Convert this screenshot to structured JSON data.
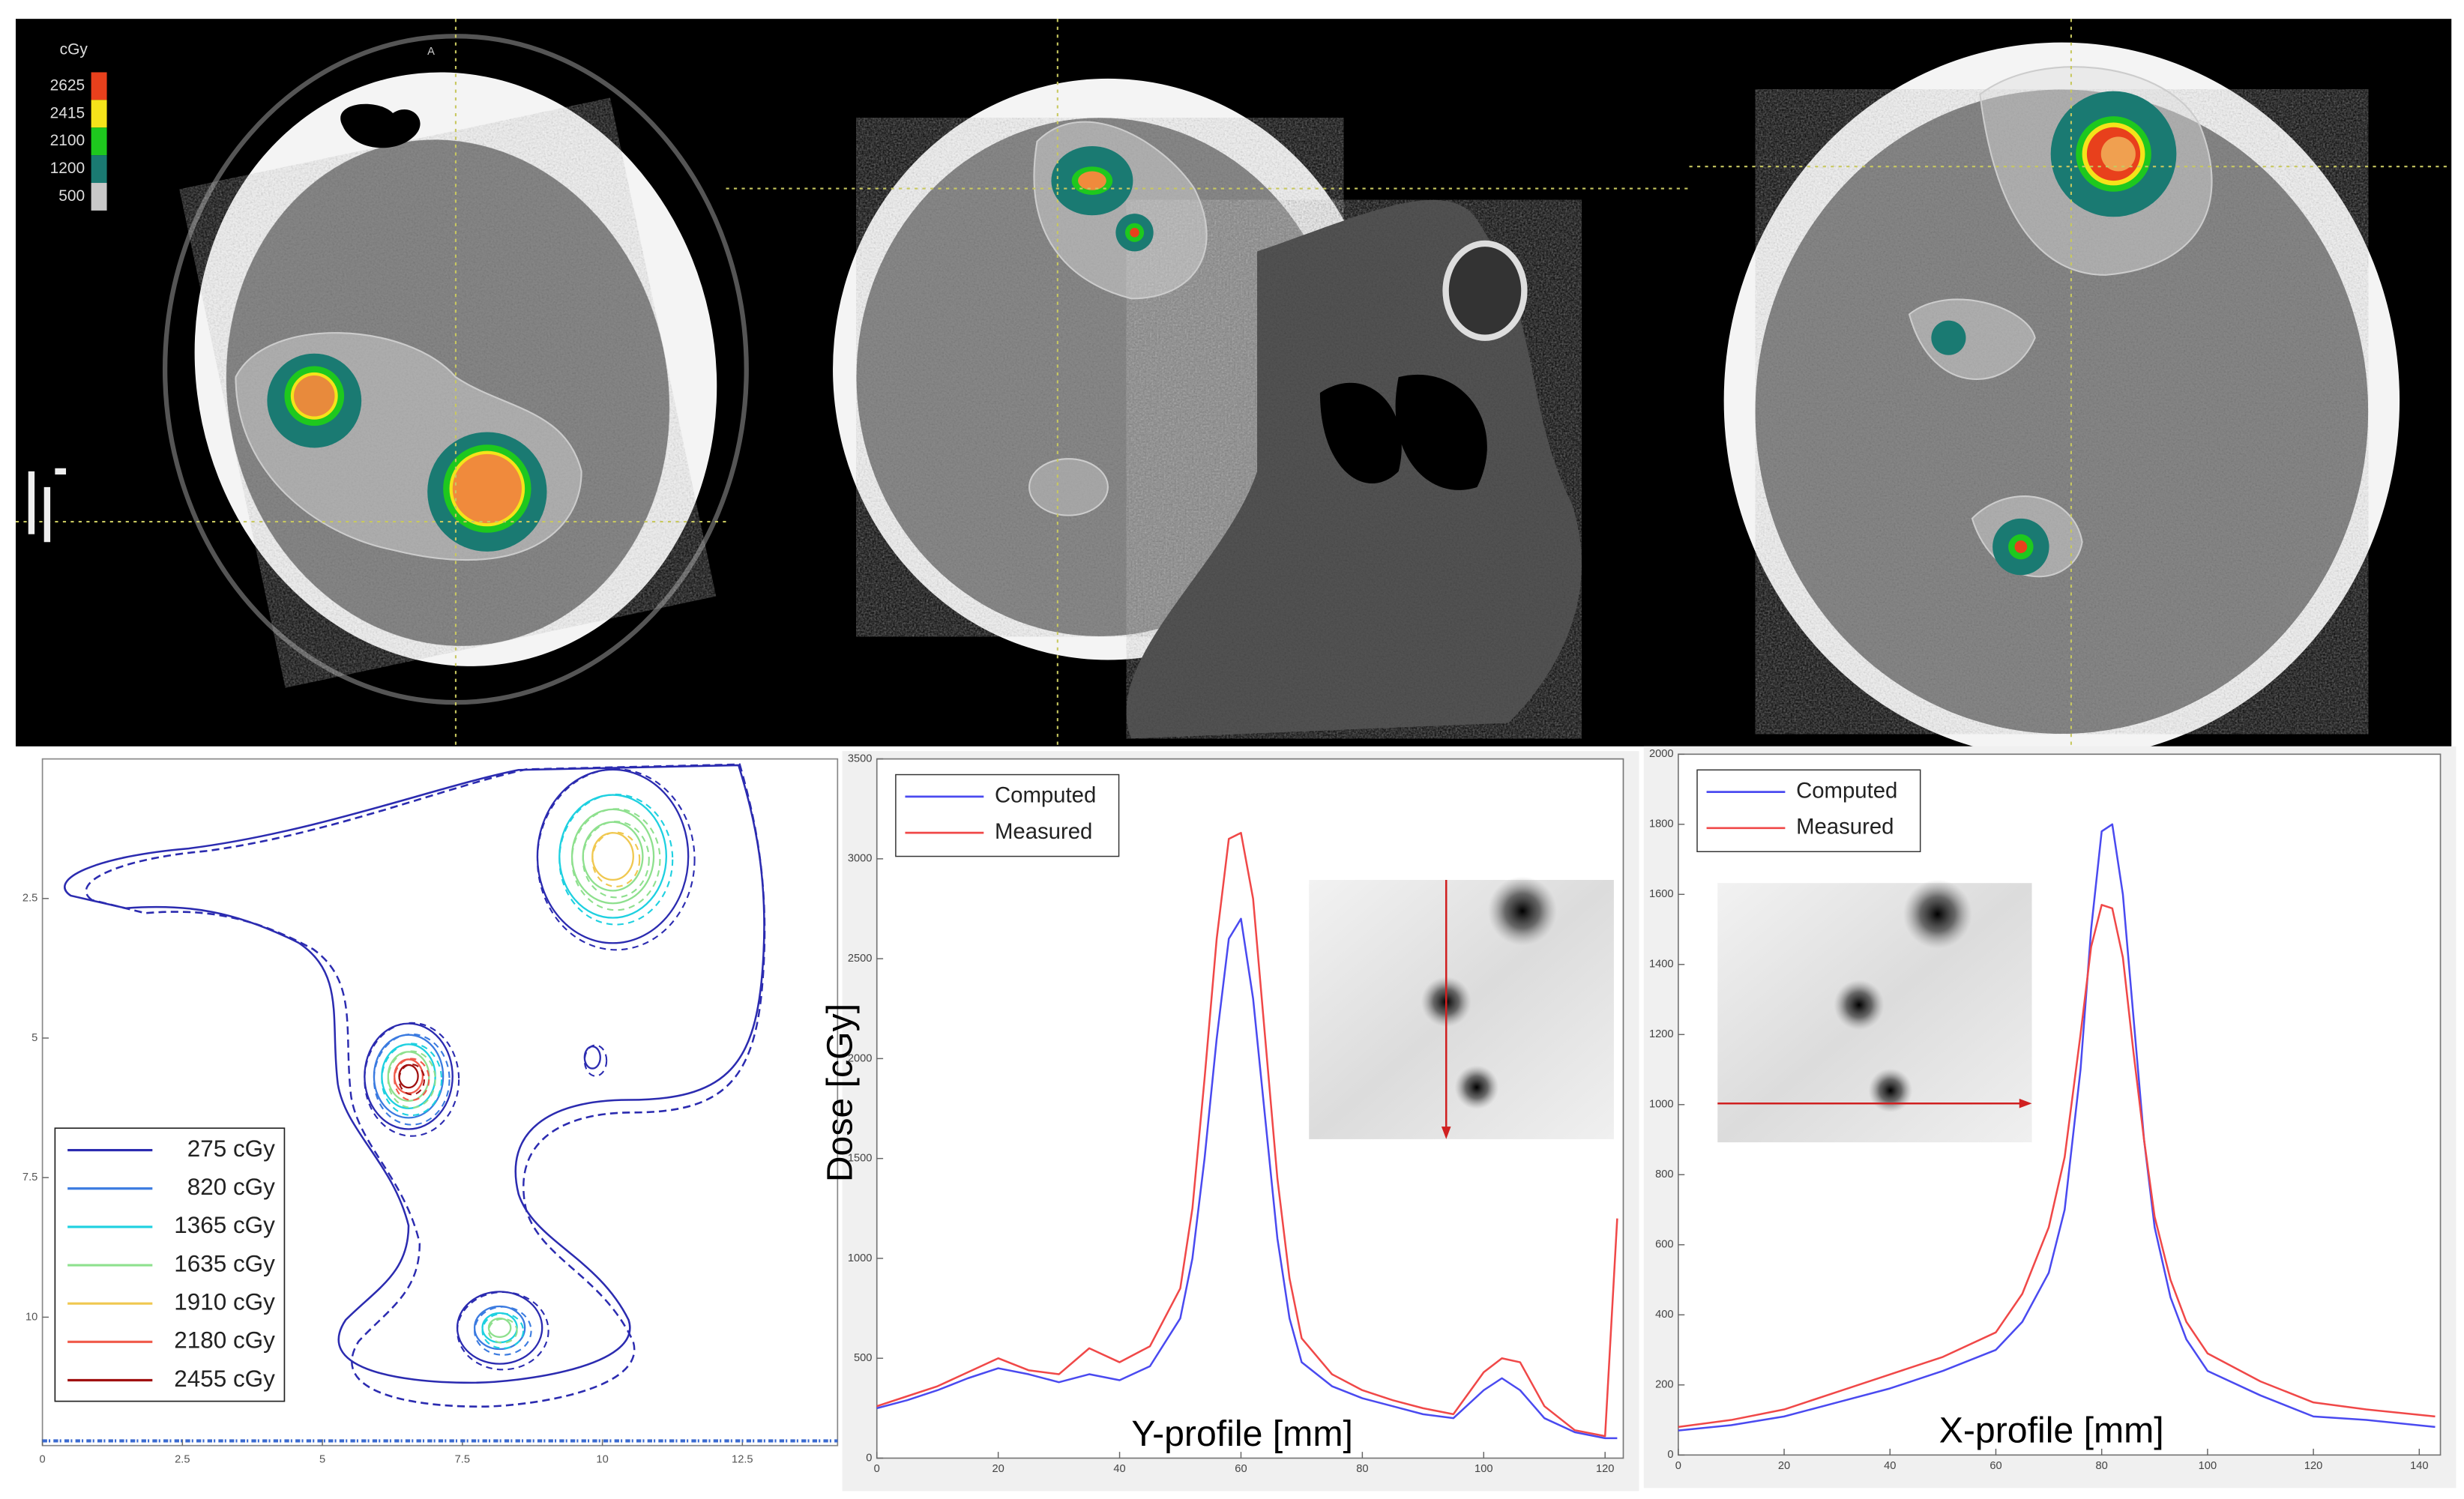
{
  "axial_label": "A",
  "chart_data": [
    {
      "type": "colorbar",
      "title": "cGy",
      "ticks": [
        2625,
        2415,
        2100,
        1200,
        500
      ],
      "colors": [
        "#e8401c",
        "#f5e31a",
        "#1ec81e",
        "#1a7a72",
        "#c8c8c8"
      ]
    },
    {
      "type": "contour",
      "xlim": [
        0,
        14.2
      ],
      "xticks": [
        0,
        2.5,
        5,
        7.5,
        10,
        12.5
      ],
      "ylim": [
        0,
        12.3
      ],
      "yticks": [
        2.5,
        5,
        7.5,
        10
      ],
      "y_inverted": true,
      "legend": "lower left",
      "series": [
        {
          "name": "275 cGy",
          "color": "#2b2bb0"
        },
        {
          "name": "820 cGy",
          "color": "#3b7be0"
        },
        {
          "name": "1365 cGy",
          "color": "#1ed0e0"
        },
        {
          "name": "1635 cGy",
          "color": "#8ee08e"
        },
        {
          "name": "1910 cGy",
          "color": "#f0c850"
        },
        {
          "name": "2180 cGy",
          "color": "#f05a4a"
        },
        {
          "name": "2455 cGy",
          "color": "#a01010"
        }
      ]
    },
    {
      "type": "line",
      "xlabel": "Y-profile [mm]",
      "ylabel": "Dose [cGy]",
      "xlim": [
        0,
        123
      ],
      "xticks": [
        0,
        20,
        40,
        60,
        80,
        100,
        120
      ],
      "ylim": [
        0,
        3500
      ],
      "yticks": [
        0,
        500,
        1000,
        1500,
        2000,
        2500,
        3000,
        3500
      ],
      "legend": "upper left",
      "x": [
        0,
        5,
        10,
        15,
        20,
        25,
        30,
        35,
        40,
        45,
        50,
        52,
        54,
        56,
        58,
        60,
        62,
        64,
        66,
        68,
        70,
        75,
        80,
        85,
        90,
        95,
        100,
        103,
        106,
        110,
        115,
        120,
        122
      ],
      "series": [
        {
          "name": "Computed",
          "color": "#4a4af0",
          "values": [
            250,
            290,
            340,
            400,
            450,
            420,
            380,
            420,
            390,
            460,
            700,
            1000,
            1500,
            2100,
            2600,
            2700,
            2300,
            1700,
            1100,
            700,
            480,
            360,
            300,
            260,
            220,
            200,
            340,
            400,
            340,
            200,
            130,
            100,
            100
          ]
        },
        {
          "name": "Measured",
          "color": "#f04848",
          "values": [
            260,
            310,
            360,
            430,
            500,
            440,
            420,
            550,
            480,
            560,
            850,
            1250,
            1900,
            2600,
            3100,
            3130,
            2800,
            2100,
            1400,
            900,
            600,
            420,
            340,
            290,
            250,
            220,
            430,
            500,
            480,
            260,
            140,
            110,
            1200
          ]
        }
      ]
    },
    {
      "type": "line",
      "xlabel": "X-profile [mm]",
      "xlim": [
        0,
        144
      ],
      "xticks": [
        0,
        20,
        40,
        60,
        80,
        100,
        120,
        140
      ],
      "ylim": [
        0,
        2000
      ],
      "yticks": [
        0,
        200,
        400,
        600,
        800,
        1000,
        1200,
        1400,
        1600,
        1800,
        2000
      ],
      "legend": "upper left",
      "x": [
        0,
        10,
        20,
        30,
        40,
        50,
        60,
        65,
        70,
        73,
        76,
        78,
        80,
        82,
        84,
        86,
        88,
        90,
        93,
        96,
        100,
        110,
        120,
        130,
        143
      ],
      "series": [
        {
          "name": "Computed",
          "color": "#4a4af0",
          "values": [
            70,
            85,
            110,
            150,
            190,
            240,
            300,
            380,
            520,
            700,
            1100,
            1500,
            1780,
            1800,
            1600,
            1250,
            900,
            650,
            450,
            330,
            240,
            170,
            110,
            100,
            80
          ]
        },
        {
          "name": "Measured",
          "color": "#f04848",
          "values": [
            80,
            100,
            130,
            180,
            230,
            280,
            350,
            460,
            650,
            850,
            1200,
            1450,
            1570,
            1560,
            1420,
            1150,
            900,
            680,
            500,
            380,
            290,
            210,
            150,
            130,
            110
          ]
        }
      ]
    }
  ]
}
